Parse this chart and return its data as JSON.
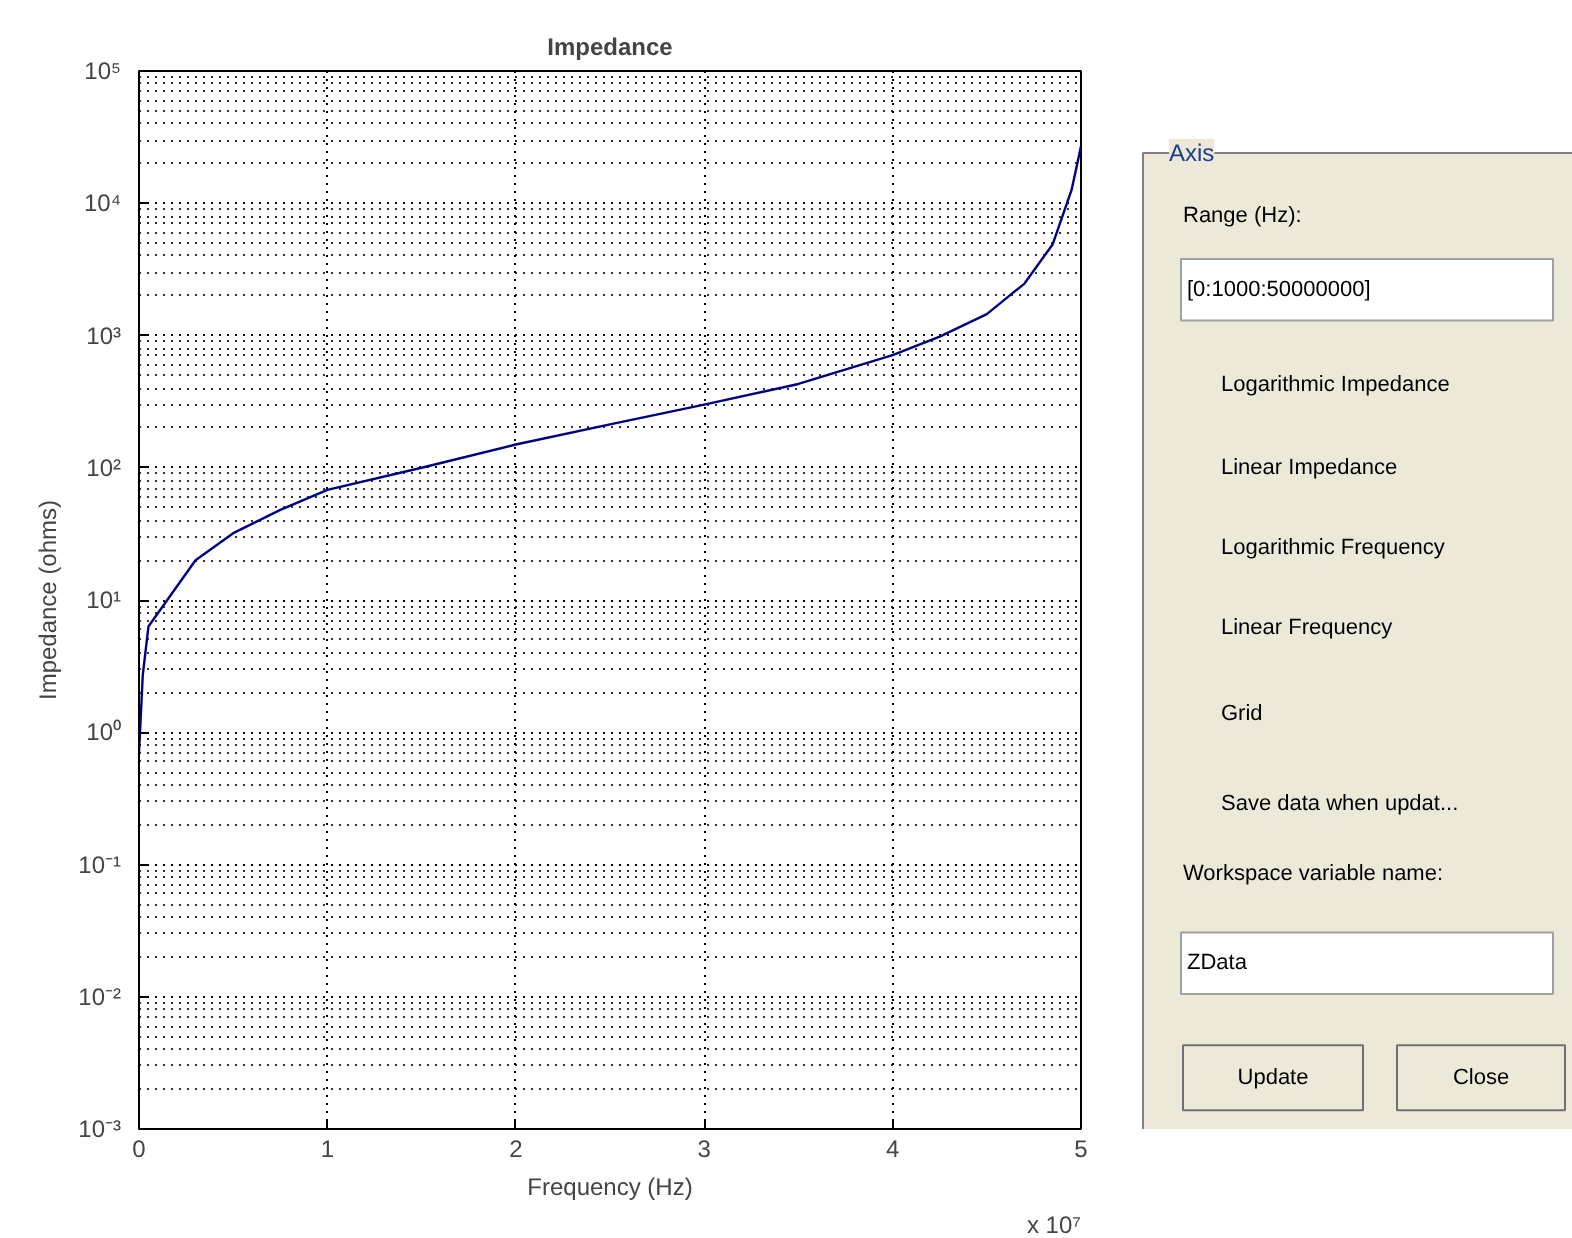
{
  "chart_data": [
    {
      "type": "line",
      "title": "Impedance",
      "xlabel": "Frequency (Hz)",
      "ylabel": "Impedance (ohms)",
      "log": "y",
      "grid": true,
      "x": [
        0,
        0.02,
        0.05,
        0.15,
        0.3,
        0.5,
        0.75,
        1,
        1.5,
        2,
        2.5,
        3,
        3.5,
        4,
        4.25,
        4.5,
        4.7,
        4.85,
        4.95,
        5
      ],
      "series": [
        {
          "color": "#000080",
          "values": [
            0.7,
            2.7,
            6.3,
            10,
            20,
            32,
            48,
            68,
            100,
            150,
            213,
            300,
            430,
            710,
            980,
            1450,
            2470,
            4900,
            12600,
            27000
          ]
        }
      ],
      "xlim": [
        0,
        5
      ],
      "xticks": [
        0,
        1,
        2,
        3,
        4,
        5
      ],
      "ylim": [
        0.001,
        100000
      ],
      "yticks": [
        {
          "value": 0.001,
          "label": "10⁻³"
        },
        {
          "value": 0.01,
          "label": "10⁻²"
        },
        {
          "value": 0.1,
          "label": "10⁻¹"
        },
        {
          "value": 1,
          "label": "10⁰"
        },
        {
          "value": 10,
          "label": "10¹"
        },
        {
          "value": 100,
          "label": "10²"
        },
        {
          "value": 1000,
          "label": "10³"
        },
        {
          "value": 10000,
          "label": "10⁴"
        },
        {
          "value": 100000,
          "label": "10⁵"
        }
      ],
      "annotations": [
        "x 10⁷"
      ]
    },
    {
      "type": "other",
      "title": "Axis",
      "annotations": [
        "Range (Hz):",
        "[0:1000:50000000]",
        "Logarithmic Impedance",
        "Linear Impedance",
        "Logarithmic Frequency",
        "Linear Frequency",
        "Grid",
        "Save data when updat...",
        "Workspace variable name:",
        "ZData",
        "Update",
        "Close"
      ]
    }
  ]
}
